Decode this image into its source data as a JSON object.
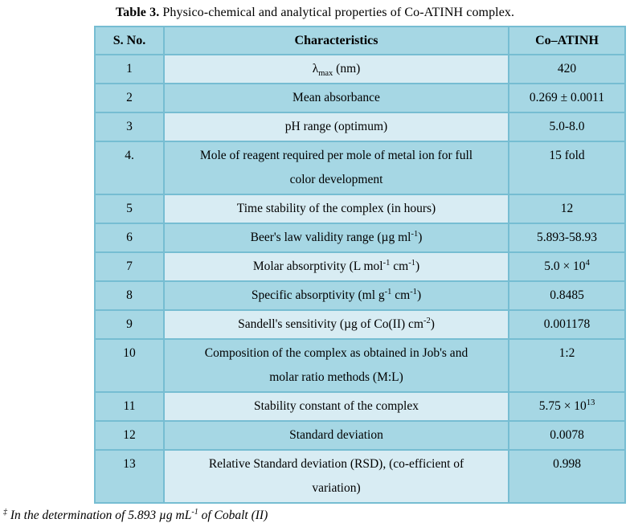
{
  "title": {
    "label": "Table 3.",
    "text": " Physico-chemical and analytical properties of Co-ATINH complex."
  },
  "colors": {
    "page_bg": "#ffffff",
    "cell_bg": "#a6d7e4",
    "cell_bg_light": "#d8ecf3",
    "border": "#76bdd2",
    "text": "#000000"
  },
  "table": {
    "headers": [
      "S. No.",
      "Characteristics",
      "Co–ATINH"
    ],
    "rows": [
      {
        "sno": "1",
        "light": true,
        "characteristic": [
          {
            "v": "λ"
          },
          {
            "v": "max",
            "s": "sub"
          },
          {
            "v": " (nm)"
          }
        ],
        "value": [
          {
            "v": "420"
          }
        ]
      },
      {
        "sno": "2",
        "light": false,
        "characteristic": [
          {
            "v": "Mean absorbance"
          }
        ],
        "value": [
          {
            "v": "0.269 ± 0.0011"
          }
        ]
      },
      {
        "sno": "3",
        "light": true,
        "characteristic": [
          {
            "v": "pH range (optimum)"
          }
        ],
        "value": [
          {
            "v": "5.0-8.0"
          }
        ]
      },
      {
        "sno": "4.",
        "light": false,
        "characteristic": [
          {
            "v": "Mole of reagent required per mole of metal ion for full"
          },
          {
            "br": true
          },
          {
            "v": "color development"
          }
        ],
        "value": [
          {
            "v": "15 fold"
          }
        ]
      },
      {
        "sno": "5",
        "light": true,
        "characteristic": [
          {
            "v": "Time stability of the complex (in hours)"
          }
        ],
        "value": [
          {
            "v": "12"
          }
        ]
      },
      {
        "sno": "6",
        "light": false,
        "characteristic": [
          {
            "v": "Beer's law validity range (µg ml"
          },
          {
            "v": "-1",
            "s": "sup"
          },
          {
            "v": ")"
          }
        ],
        "value": [
          {
            "v": "5.893-58.93"
          }
        ]
      },
      {
        "sno": "7",
        "light": true,
        "characteristic": [
          {
            "v": "Molar absorptivity (L mol"
          },
          {
            "v": "-1",
            "s": "sup"
          },
          {
            "v": " cm"
          },
          {
            "v": "-1",
            "s": "sup"
          },
          {
            "v": ")"
          }
        ],
        "value": [
          {
            "v": "5.0 × 10"
          },
          {
            "v": "4",
            "s": "sup"
          }
        ]
      },
      {
        "sno": "8",
        "light": false,
        "characteristic": [
          {
            "v": "Specific absorptivity (ml g"
          },
          {
            "v": "-1",
            "s": "sup"
          },
          {
            "v": " cm"
          },
          {
            "v": "-1",
            "s": "sup"
          },
          {
            "v": ")"
          }
        ],
        "value": [
          {
            "v": "0.8485"
          }
        ]
      },
      {
        "sno": "9",
        "light": true,
        "characteristic": [
          {
            "v": "Sandell's sensitivity (µg of Co(II) cm"
          },
          {
            "v": "-2",
            "s": "sup"
          },
          {
            "v": ")"
          }
        ],
        "value": [
          {
            "v": "0.001178"
          }
        ]
      },
      {
        "sno": "10",
        "light": false,
        "characteristic": [
          {
            "v": "Composition of the complex as obtained in Job's and"
          },
          {
            "br": true
          },
          {
            "v": "molar ratio methods (M:L)"
          }
        ],
        "value": [
          {
            "v": "1:2"
          }
        ]
      },
      {
        "sno": "11",
        "light": true,
        "characteristic": [
          {
            "v": "Stability constant of the complex"
          }
        ],
        "value": [
          {
            "v": "5.75 × 10"
          },
          {
            "v": "13",
            "s": "sup"
          }
        ]
      },
      {
        "sno": "12",
        "light": false,
        "characteristic": [
          {
            "v": "Standard deviation"
          }
        ],
        "value": [
          {
            "v": "0.0078"
          }
        ]
      },
      {
        "sno": "13",
        "light": true,
        "characteristic": [
          {
            "v": "Relative Standard deviation (RSD), (co-efficient of"
          },
          {
            "br": true
          },
          {
            "v": "variation)"
          }
        ],
        "value": [
          {
            "v": "0.998"
          }
        ]
      }
    ]
  },
  "footnote": [
    {
      "v": "‡",
      "s": "sup"
    },
    {
      "v": " In the determination of 5.893 µg mL"
    },
    {
      "v": "-1",
      "s": "sup"
    },
    {
      "v": " of Cobalt (II)"
    }
  ]
}
